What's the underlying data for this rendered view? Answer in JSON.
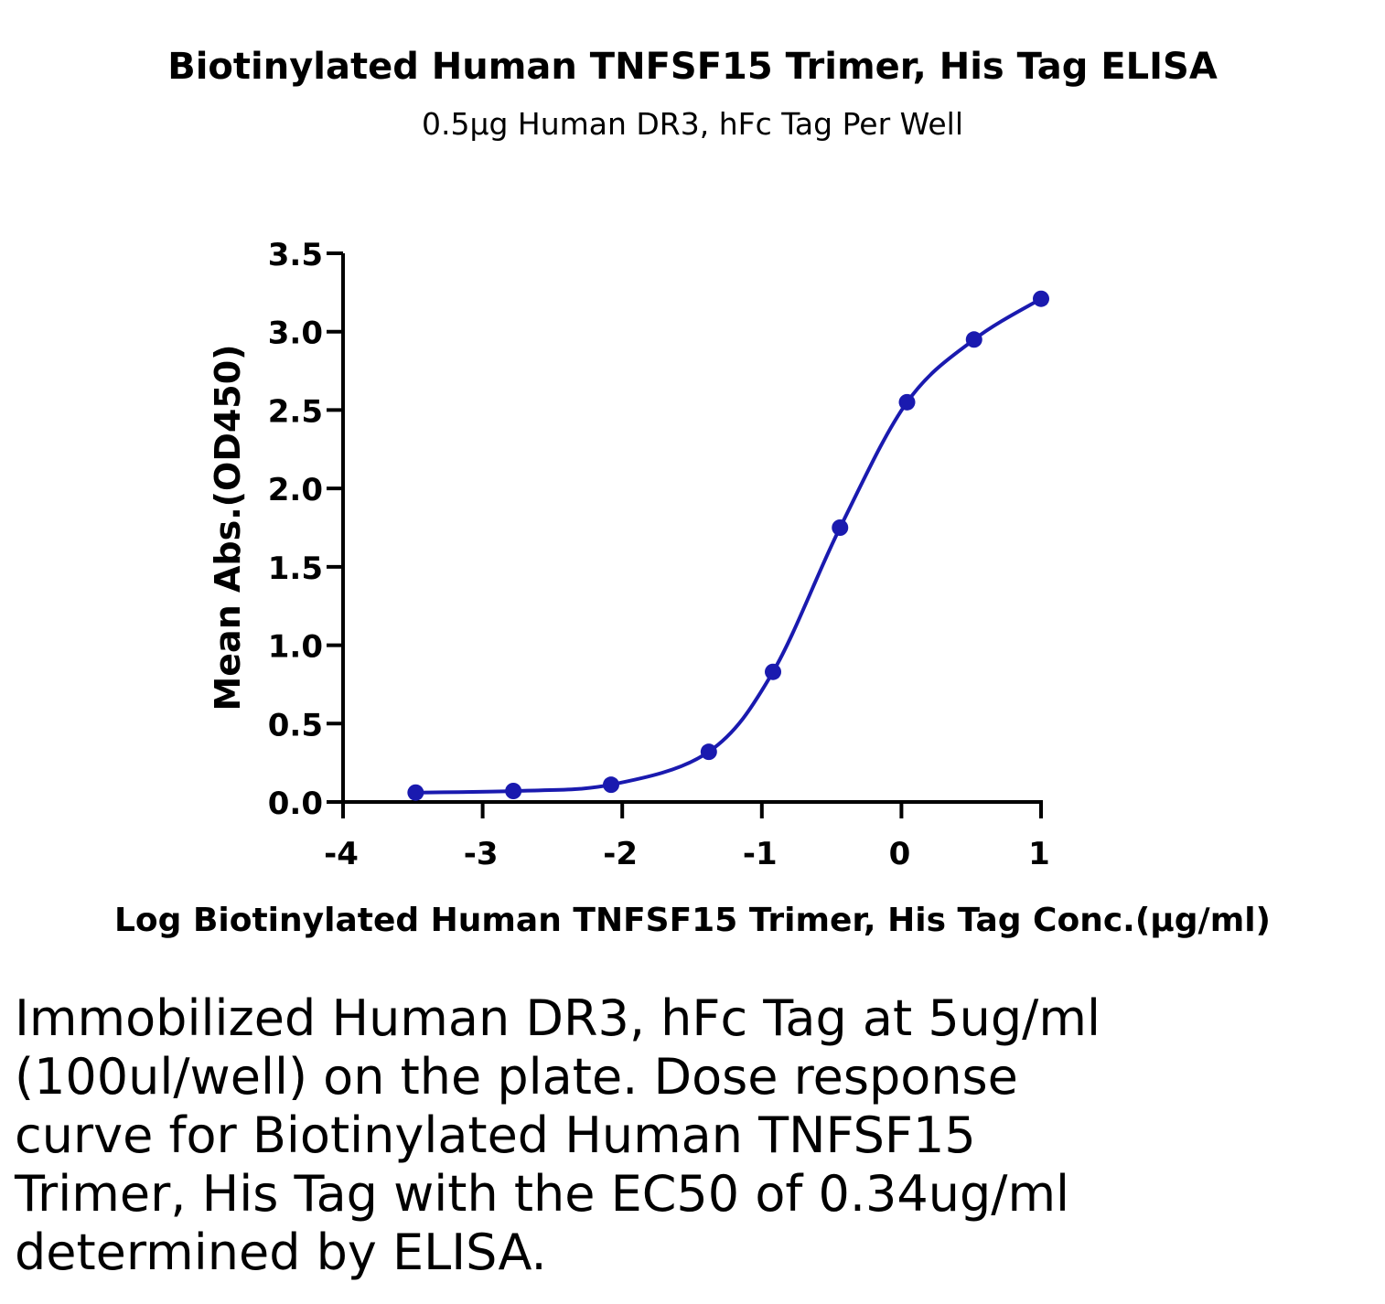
{
  "chart_data": {
    "type": "line",
    "title": "Biotinylated Human TNFSF15 Trimer, His Tag ELISA",
    "subtitle": "0.5μg Human DR3, hFc Tag Per Well",
    "xlabel": "Log Biotinylated Human TNFSF15 Trimer, His Tag Conc.(μg/ml)",
    "ylabel": "Mean Abs.(OD450)",
    "xlim": [
      -4,
      1
    ],
    "ylim": [
      0,
      3.5
    ],
    "xticks": [
      "-4",
      "-3",
      "-2",
      "-1",
      "0",
      "1"
    ],
    "yticks": [
      "0.0",
      "0.5",
      "1.0",
      "1.5",
      "2.0",
      "2.5",
      "3.0",
      "3.5"
    ],
    "grid": false,
    "series": [
      {
        "color": "#1a1aaf",
        "x": [
          -3.48,
          -2.78,
          -2.08,
          -1.38,
          -0.92,
          -0.44,
          0.04,
          0.52,
          1.0
        ],
        "y": [
          0.06,
          0.07,
          0.11,
          0.32,
          0.83,
          1.75,
          2.55,
          2.95,
          3.21
        ]
      }
    ]
  },
  "caption_lines": [
    "Immobilized Human DR3, hFc Tag at 5ug/ml",
    "(100ul/well) on the plate. Dose response",
    "curve for Biotinylated Human TNFSF15",
    "Trimer, His Tag with the EC50 of 0.34ug/ml",
    "determined by ELISA."
  ]
}
